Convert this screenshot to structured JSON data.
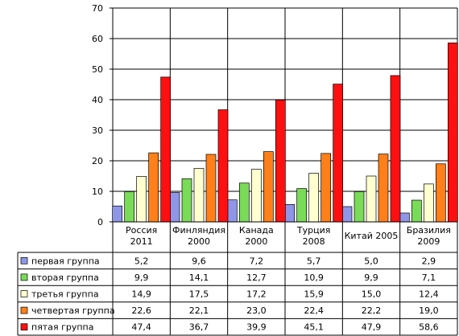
{
  "chart_data": {
    "type": "bar",
    "title": "",
    "xlabel": "",
    "ylabel": "",
    "ylim": [
      0,
      70
    ],
    "yticks": [
      0,
      10,
      20,
      30,
      40,
      50,
      60,
      70
    ],
    "grid": true,
    "legend": "table-below",
    "categories": [
      [
        "Россия",
        "2011"
      ],
      [
        "Финляндия",
        "2000"
      ],
      [
        "Канада",
        "2000"
      ],
      [
        "Турция",
        "2008"
      ],
      [
        "Китай 2005"
      ],
      [
        "Бразилия",
        "2009"
      ]
    ],
    "series": [
      {
        "name": "первая группа",
        "color": "#8F96E8",
        "values": [
          5.2,
          9.6,
          7.2,
          5.7,
          5.0,
          2.9
        ],
        "labels": [
          "5,2",
          "9,6",
          "7,2",
          "5,7",
          "5,0",
          "2,9"
        ]
      },
      {
        "name": "вторая группа",
        "color": "#7ADB58",
        "values": [
          9.9,
          14.1,
          12.7,
          10.9,
          9.9,
          7.1
        ],
        "labels": [
          "9,9",
          "14,1",
          "12,7",
          "10,9",
          "9,9",
          "7,1"
        ]
      },
      {
        "name": "третья группа",
        "color": "#FFFFD0",
        "values": [
          14.9,
          17.5,
          17.2,
          15.9,
          15.0,
          12.4
        ],
        "labels": [
          "14,9",
          "17,5",
          "17,2",
          "15,9",
          "15,0",
          "12,4"
        ]
      },
      {
        "name": "четвертая группа",
        "color": "#FF7F1A",
        "values": [
          22.6,
          22.1,
          23.0,
          22.4,
          22.2,
          19.0
        ],
        "labels": [
          "22,6",
          "22,1",
          "23,0",
          "22,4",
          "22,2",
          "19,0"
        ]
      },
      {
        "name": "пятая группа",
        "color": "#FF1010",
        "values": [
          47.4,
          36.7,
          39.9,
          45.1,
          47.9,
          58.6
        ],
        "labels": [
          "47,4",
          "36,7",
          "39,9",
          "45,1",
          "47,9",
          "58,6"
        ]
      }
    ]
  }
}
